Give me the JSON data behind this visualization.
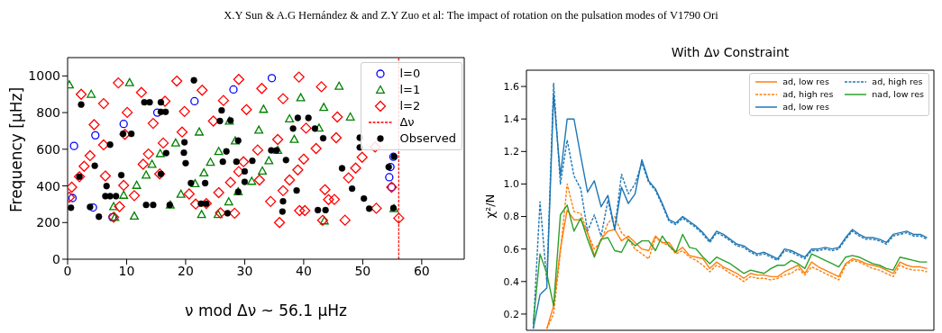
{
  "chart_data": [
    {
      "type": "scatter",
      "annotations": [
        "X.Y Sun & A.G Hernández & and Z.Y Zuo et al: The impact of rotation on the pulsation modes of V1790 Ori"
      ],
      "xlabel": "ν mod Δν ~ 56.1 μHz",
      "ylabel": "Frequency [μHz]",
      "xlim": [
        0,
        67.2
      ],
      "ylim": [
        0,
        1100
      ],
      "xticks": [
        0,
        10,
        20,
        30,
        40,
        50,
        60
      ],
      "yticks": [
        0,
        200,
        400,
        600,
        800,
        1000
      ],
      "legend": "top right",
      "ref_lines": [
        {
          "axis": "x",
          "value": 56.1,
          "label": "Δν",
          "color": "#ff0000",
          "line_style": "dashed"
        }
      ],
      "series": [
        {
          "name": "l=0",
          "color": "#0000ff",
          "marker": "circle",
          "x": [
            1.09,
            0.83,
            4.7,
            4.3,
            9.5,
            7.6,
            15.2,
            21.5,
            28.1,
            34.6,
            55.2,
            54.7,
            54.5,
            54.9
          ],
          "values": [
            618,
            334,
            676,
            282,
            738,
            229,
            800,
            862,
            926,
            988,
            559,
            503,
            447,
            393
          ]
        },
        {
          "name": "l=1",
          "color": "#008000",
          "marker": "triangle",
          "x": [
            0.3,
            10.5,
            4.0,
            18.3,
            15.7,
            14.3,
            13.3,
            11.7,
            9.5,
            7.8,
            8.0,
            11.3,
            17.4,
            19.2,
            21.6,
            23.1,
            24.2,
            25.6,
            27.3,
            25.5,
            22.7,
            27.4,
            22.3,
            28.4,
            28.9,
            46.0,
            39.5,
            33.2,
            43.4,
            47.9,
            37.6,
            42.6,
            32.4,
            38.4,
            35.6,
            34.1,
            33.0,
            31.2,
            43.5,
            55.3
          ],
          "values": [
            951,
            963,
            900,
            634,
            576,
            518,
            459,
            403,
            349,
            287,
            228,
            235,
            296,
            354,
            412,
            471,
            529,
            588,
            313,
            244,
            244,
            753,
            694,
            645,
            368,
            944,
            881,
            818,
            828,
            776,
            766,
            715,
            704,
            654,
            594,
            537,
            481,
            425,
            209,
            276
          ]
        },
        {
          "name": "l=2",
          "color": "#ff0000",
          "marker": "diamond",
          "x": [
            0.3,
            0.7,
            2.0,
            2.8,
            3.8,
            4.5,
            6.1,
            2.3,
            8.6,
            6.1,
            6.4,
            9.5,
            8.8,
            7.8,
            10.1,
            9.7,
            11.3,
            12.5,
            14.5,
            13.7,
            12.8,
            15.6,
            16.2,
            16.5,
            18.5,
            19.8,
            19.4,
            20.6,
            21.7,
            22.8,
            23.5,
            24.7,
            25.6,
            25.9,
            26.4,
            27.6,
            28.3,
            29.0,
            30.3,
            29.0,
            29.8,
            32.9,
            36.5,
            39.2,
            43.0,
            45.7,
            40.4,
            35.6,
            45.5,
            32.2,
            42.1,
            52.1,
            40.0,
            49.9,
            39.0,
            48.8,
            32.5,
            37.6,
            47.6,
            36.5,
            43.6,
            54.9,
            34.4,
            44.2,
            45.2,
            52.3,
            39.3,
            40.2,
            35.9,
            43.2,
            47.0,
            56.1
          ],
          "values": [
            338,
            393,
            450,
            507,
            565,
            734,
            849,
            900,
            962,
            624,
            454,
            403,
            287,
            229,
            801,
            681,
            347,
            910,
            741,
            574,
            518,
            465,
            634,
            862,
            972,
            806,
            694,
            356,
            301,
            922,
            304,
            754,
            363,
            253,
            866,
            419,
            251,
            981,
            816,
            478,
            532,
            932,
            876,
            994,
            941,
            776,
            715,
            653,
            663,
            596,
            604,
            612,
            546,
            556,
            487,
            497,
            432,
            432,
            444,
            374,
            379,
            393,
            315,
            325,
            326,
            278,
            265,
            265,
            200,
            212,
            213,
            224
          ]
        },
        {
          "name": "Observed",
          "color": "#000000",
          "marker": "circle",
          "x": [
            0.57,
            2.0,
            2.3,
            4.6,
            3.8,
            5.3,
            7.2,
            6.6,
            6.4,
            7.2,
            8.2,
            9.1,
            9.4,
            10.8,
            13.0,
            13.9,
            15.8,
            15.8,
            16.6,
            15.8,
            16.7,
            13.3,
            14.5,
            17.3,
            19.8,
            19.7,
            20.0,
            20.9,
            23.3,
            21.4,
            22.6,
            23.5,
            25.8,
            26.1,
            26.3,
            26.9,
            27.6,
            27.1,
            28.6,
            30.0,
            30.0,
            28.9,
            28.9,
            31.3,
            34.5,
            35.4,
            37.0,
            39.0,
            40.8,
            38.2,
            41.9,
            43.3,
            38.8,
            36.5,
            36.4,
            42.4,
            43.7,
            46.5,
            48.2,
            49.5,
            49.5,
            50.2,
            51.1,
            54.4,
            55.3,
            55.2
          ],
          "values": [
            281,
            450,
            844,
            510,
            285,
            232,
            625,
            399,
            344,
            344,
            344,
            459,
            684,
            684,
            856,
            856,
            856,
            804,
            804,
            465,
            579,
            296,
            296,
            296,
            638,
            581,
            524,
            415,
            415,
            976,
            303,
            303,
            754,
            812,
            532,
            588,
            757,
            251,
            532,
            479,
            422,
            647,
            368,
            537,
            594,
            594,
            541,
            771,
            771,
            713,
            713,
            660,
            375,
            316,
            260,
            268,
            268,
            496,
            385,
            663,
            610,
            331,
            276,
            503,
            560,
            279
          ]
        }
      ]
    },
    {
      "type": "line",
      "title": "With Δν Constraint",
      "ylabel": "χ²/N",
      "ylim": [
        0.1,
        1.7
      ],
      "yticks": [
        0.2,
        0.4,
        0.6,
        0.8,
        {
          "value": 1,
          "label": "1.0"
        },
        1.2,
        1.4,
        1.6
      ],
      "tick_labels": "y",
      "legend": "top right",
      "categories": [
        null,
        null,
        null,
        null,
        null,
        null,
        null,
        null,
        null,
        null,
        null,
        null,
        null,
        null,
        null,
        null,
        null,
        null,
        null,
        null,
        null,
        null,
        null,
        null,
        null,
        null,
        null,
        null,
        null,
        null,
        null,
        null,
        null,
        null,
        null,
        null,
        null,
        null,
        null,
        null,
        null,
        null,
        null,
        null,
        null,
        null,
        null,
        null,
        null,
        null,
        null,
        null,
        null,
        null,
        null,
        null,
        null,
        null,
        null
      ],
      "series": [
        {
          "name": "ad, low res",
          "color": "#ff7f0e",
          "line_style": "solid",
          "values": [
            null,
            null,
            0.11,
            0.25,
            0.6,
            0.84,
            0.78,
            0.78,
            0.7,
            0.56,
            0.66,
            0.71,
            0.72,
            0.65,
            0.68,
            0.64,
            0.6,
            0.59,
            0.68,
            0.64,
            0.64,
            0.58,
            0.61,
            0.56,
            0.55,
            0.54,
            0.48,
            0.52,
            0.49,
            0.47,
            0.45,
            0.42,
            0.45,
            0.44,
            0.44,
            0.43,
            0.43,
            0.46,
            0.48,
            0.5,
            0.45,
            0.52,
            0.49,
            0.47,
            0.45,
            0.43,
            0.51,
            0.54,
            0.53,
            0.51,
            0.5,
            0.49,
            0.47,
            0.45,
            0.52,
            0.5,
            0.49,
            0.49,
            0.48
          ]
        },
        {
          "name": "ad, high res",
          "color": "#ff7f0e",
          "line_style": "dashed",
          "values": [
            null,
            null,
            0.11,
            0.2,
            0.58,
            1.0,
            0.83,
            0.82,
            0.7,
            0.6,
            0.65,
            0.76,
            0.8,
            0.7,
            0.66,
            0.6,
            0.57,
            0.54,
            0.67,
            0.64,
            0.62,
            0.57,
            0.59,
            0.55,
            0.53,
            0.5,
            0.46,
            0.5,
            0.48,
            0.45,
            0.43,
            0.4,
            0.43,
            0.42,
            0.42,
            0.41,
            0.42,
            0.44,
            0.45,
            0.48,
            0.44,
            0.49,
            0.47,
            0.45,
            0.43,
            0.41,
            0.5,
            0.53,
            0.52,
            0.5,
            0.48,
            0.47,
            0.45,
            0.43,
            0.5,
            0.48,
            0.47,
            0.47,
            0.46
          ]
        },
        {
          "name": "ad, low res",
          "color": "#1f77b4",
          "line_style": "solid",
          "values": [
            0.11,
            0.32,
            0.36,
            1.55,
            1.05,
            1.4,
            1.4,
            1.17,
            0.95,
            1.02,
            0.86,
            0.93,
            0.72,
            0.98,
            0.88,
            0.94,
            1.15,
            1.02,
            0.97,
            0.88,
            0.78,
            0.76,
            0.8,
            0.77,
            0.74,
            0.7,
            0.65,
            0.71,
            0.69,
            0.66,
            0.63,
            0.62,
            0.59,
            0.57,
            0.58,
            0.56,
            0.54,
            0.6,
            0.59,
            0.57,
            0.55,
            0.6,
            0.6,
            0.61,
            0.6,
            0.61,
            0.67,
            0.72,
            0.69,
            0.67,
            0.67,
            0.66,
            0.64,
            0.69,
            0.7,
            0.71,
            0.69,
            0.69,
            0.67
          ]
        },
        {
          "name": "ad, high res",
          "color": "#1f77b4",
          "line_style": "dashed",
          "values": [
            0.11,
            0.89,
            0.4,
            1.62,
            1.0,
            1.27,
            1.05,
            0.97,
            0.71,
            0.81,
            0.68,
            0.9,
            0.72,
            1.06,
            0.94,
            1.0,
            1.13,
            1.01,
            0.96,
            0.87,
            0.77,
            0.75,
            0.79,
            0.76,
            0.73,
            0.69,
            0.64,
            0.7,
            0.68,
            0.65,
            0.62,
            0.61,
            0.58,
            0.56,
            0.57,
            0.55,
            0.53,
            0.59,
            0.58,
            0.56,
            0.54,
            0.59,
            0.59,
            0.6,
            0.59,
            0.6,
            0.66,
            0.71,
            0.68,
            0.66,
            0.66,
            0.65,
            0.63,
            0.68,
            0.69,
            0.7,
            0.68,
            0.68,
            0.66
          ]
        },
        {
          "name": "nad, low res",
          "color": "#2ca02c",
          "line_style": "solid",
          "values": [
            0.14,
            0.57,
            0.45,
            0.25,
            0.81,
            0.87,
            0.71,
            0.79,
            0.66,
            0.55,
            0.66,
            0.67,
            0.59,
            0.58,
            0.66,
            0.62,
            0.65,
            0.65,
            0.59,
            0.68,
            0.62,
            0.58,
            0.69,
            0.61,
            0.6,
            0.55,
            0.51,
            0.55,
            0.53,
            0.51,
            0.48,
            0.45,
            0.47,
            0.46,
            0.45,
            0.48,
            0.5,
            0.5,
            0.53,
            0.51,
            0.48,
            0.57,
            0.55,
            0.53,
            0.51,
            0.49,
            0.55,
            0.56,
            0.55,
            0.53,
            0.51,
            0.5,
            0.48,
            0.47,
            0.55,
            0.54,
            0.53,
            0.52,
            0.52
          ]
        }
      ]
    }
  ]
}
